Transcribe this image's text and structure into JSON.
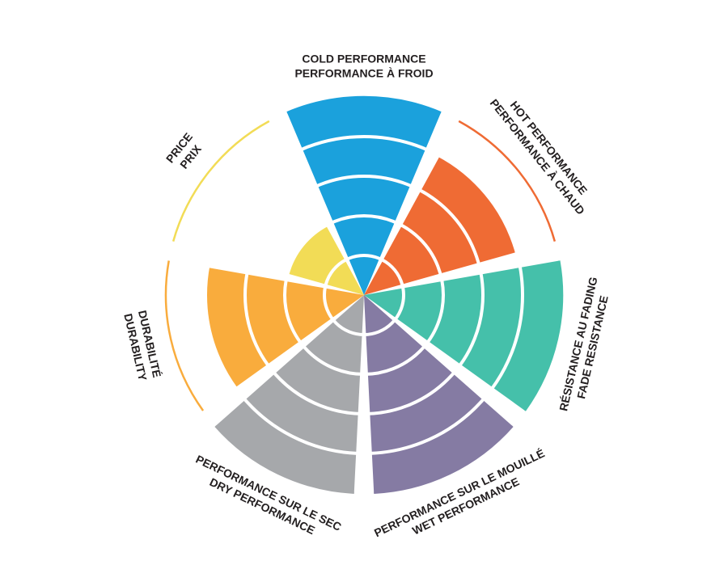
{
  "chart_data": {
    "type": "polar_area",
    "categories": [
      [
        "COLD PERFORMANCE",
        "PERFORMANCE À FROID"
      ],
      [
        "HOT PERFORMANCE",
        "PERFORMANCE À CHAUD"
      ],
      [
        "RÉSISTANCE AU FADING",
        "FADE RESISTANCE"
      ],
      [
        "PERFORMANCE SUR LE MOUILLÉ",
        "WET PERFORMANCE"
      ],
      [
        "PERFORMANCE SUR LE SEC",
        "DRY PERFORMANCE"
      ],
      [
        "DURABILITÉ",
        "DURABILITY"
      ],
      [
        "PRICE",
        "PRIX"
      ]
    ],
    "values": [
      5,
      4,
      5,
      5,
      5,
      4,
      2
    ],
    "colors": [
      "#1ba1dc",
      "#ef6b34",
      "#45c0aa",
      "#857ba3",
      "#a6a8ab",
      "#f9ac3d",
      "#f2dc56"
    ],
    "rlim": [
      0,
      5
    ],
    "rticks": [
      1,
      2,
      3,
      4
    ],
    "grid": true
  }
}
